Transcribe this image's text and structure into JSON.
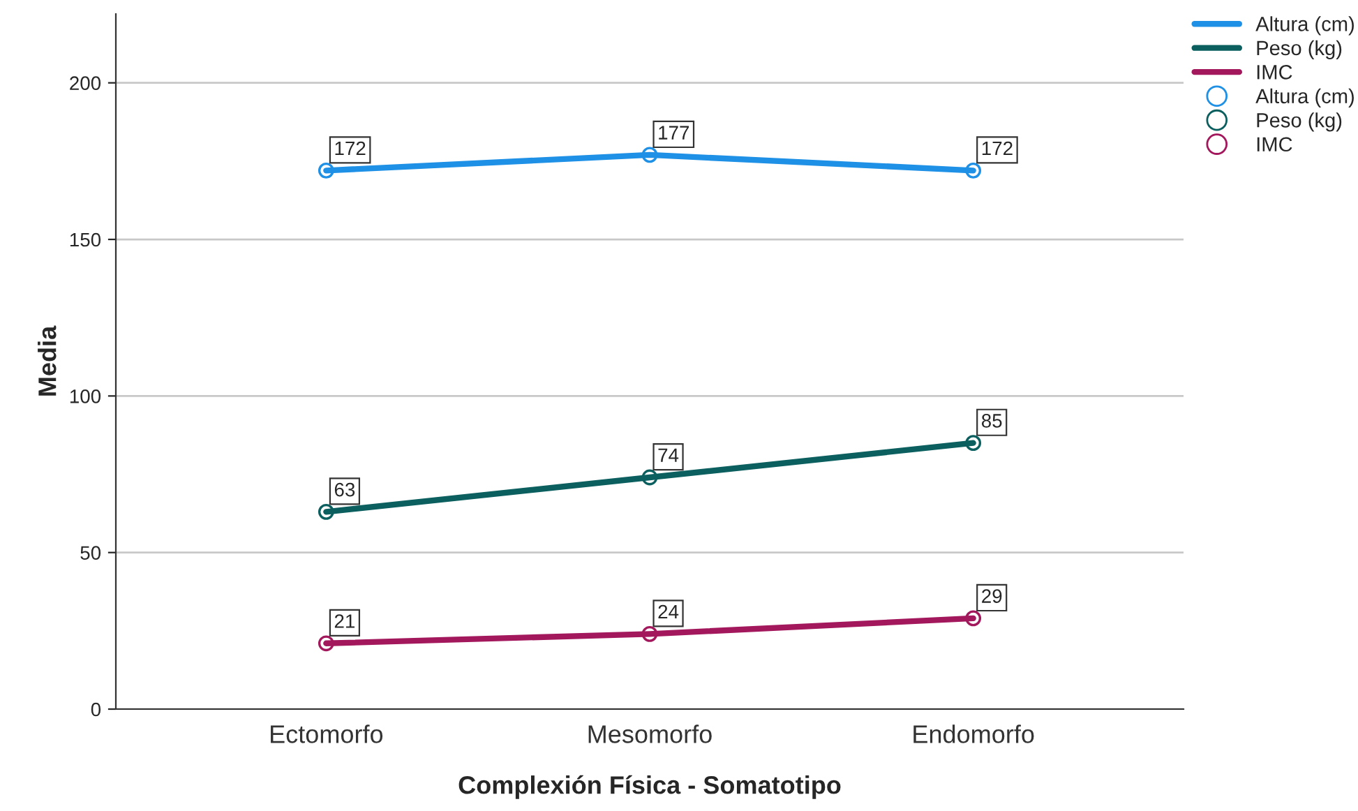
{
  "chart_data": {
    "type": "line",
    "xlabel": "Complexión Física - Somatotipo",
    "ylabel": "Media",
    "categories": [
      "Ectomorfo",
      "Mesomorfo",
      "Endomorfo"
    ],
    "series": [
      {
        "name": "Altura (cm)",
        "color": "#1e90e6",
        "values": [
          172,
          177,
          172
        ]
      },
      {
        "name": "Peso (kg)",
        "color": "#0b5f5f",
        "values": [
          63,
          74,
          85
        ]
      },
      {
        "name": "IMC",
        "color": "#a3185c",
        "values": [
          21,
          24,
          29
        ]
      }
    ],
    "ylim": [
      0,
      222
    ],
    "yticks": [
      0,
      50,
      100,
      150,
      200
    ],
    "grid": "y",
    "legend": "top right",
    "marker": "circle",
    "line_style": "solid",
    "data_labels": true
  }
}
